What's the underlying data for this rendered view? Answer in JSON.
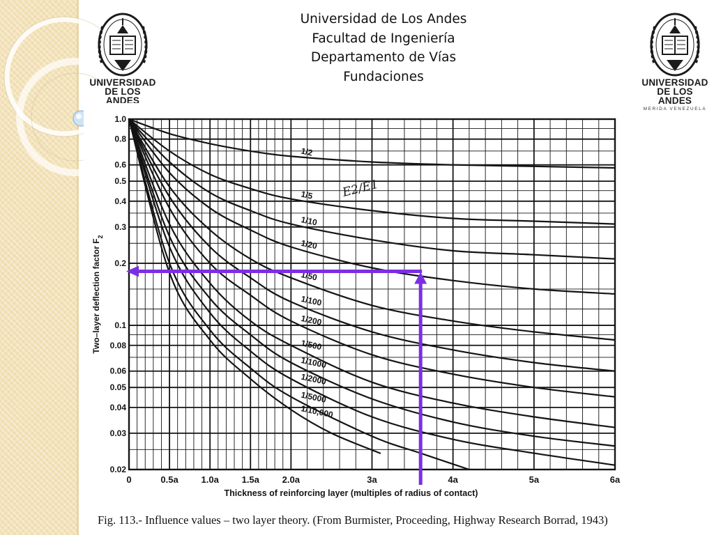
{
  "header": {
    "lines": [
      "Universidad de Los Andes",
      "Facultad de Ingeniería",
      "Departamento de Vías",
      "Fundaciones"
    ]
  },
  "logos": {
    "name_line1": "UNIVERSIDAD",
    "name_line2": "DE LOS ANDES",
    "subtitle": "MERIDA VENEZUELA"
  },
  "caption": "Fig.  113.-   Influence values – two layer theory. (From Burmister, Proceeding, Highway Research Borrad, 1943)",
  "colors": {
    "arrow": "#7b2fe3",
    "ink": "#141414",
    "strip": "#f3e2b8"
  },
  "chart_data": {
    "type": "line",
    "ylabel": "Two–layer deflection factor F",
    "ylabel_subscript": "2",
    "xlabel": "Thickness of reinforcing layer (multiples of radius of contact)",
    "y_scale": "log",
    "xlim": [
      0,
      6
    ],
    "ylim": [
      0.02,
      1.0
    ],
    "grid": true,
    "x_ticks": [
      {
        "value": 0,
        "label": "0"
      },
      {
        "value": 0.5,
        "label": "0.5a"
      },
      {
        "value": 1.0,
        "label": "1.0a"
      },
      {
        "value": 1.5,
        "label": "1.5a"
      },
      {
        "value": 2.0,
        "label": "2.0a"
      },
      {
        "value": 3,
        "label": "3a"
      },
      {
        "value": 4,
        "label": "4a"
      },
      {
        "value": 5,
        "label": "5a"
      },
      {
        "value": 6,
        "label": "6a"
      }
    ],
    "y_ticks": [
      {
        "value": 1.0,
        "label": "1.0"
      },
      {
        "value": 0.8,
        "label": "0.8"
      },
      {
        "value": 0.6,
        "label": "0.6"
      },
      {
        "value": 0.5,
        "label": "0.5"
      },
      {
        "value": 0.4,
        "label": "0.4"
      },
      {
        "value": 0.3,
        "label": "0.3"
      },
      {
        "value": 0.2,
        "label": "0.2"
      },
      {
        "value": 0.1,
        "label": "0.1"
      },
      {
        "value": 0.08,
        "label": "0.08"
      },
      {
        "value": 0.06,
        "label": "0.06"
      },
      {
        "value": 0.05,
        "label": "0.05"
      },
      {
        "value": 0.04,
        "label": "0.04"
      },
      {
        "value": 0.03,
        "label": "0.03"
      },
      {
        "value": 0.02,
        "label": "0.02"
      }
    ],
    "series": [
      {
        "name": "1/2",
        "x": [
          0,
          0.5,
          1,
          1.5,
          2,
          3,
          4,
          5,
          6
        ],
        "y": [
          1.0,
          0.85,
          0.76,
          0.7,
          0.66,
          0.62,
          0.6,
          0.59,
          0.58
        ]
      },
      {
        "name": "1/5",
        "x": [
          0,
          0.5,
          1,
          1.5,
          2,
          3,
          4,
          5,
          6
        ],
        "y": [
          1.0,
          0.7,
          0.54,
          0.46,
          0.41,
          0.36,
          0.33,
          0.32,
          0.31
        ]
      },
      {
        "name": "1/10",
        "x": [
          0,
          0.5,
          1,
          1.5,
          2,
          3,
          4,
          5,
          6
        ],
        "y": [
          1.0,
          0.62,
          0.44,
          0.36,
          0.31,
          0.26,
          0.23,
          0.22,
          0.21
        ]
      },
      {
        "name": "1/20",
        "x": [
          0,
          0.5,
          1,
          1.5,
          2,
          3,
          4,
          5,
          6
        ],
        "y": [
          1.0,
          0.55,
          0.37,
          0.29,
          0.24,
          0.19,
          0.165,
          0.15,
          0.142
        ]
      },
      {
        "name": "1/50",
        "x": [
          0,
          0.5,
          1,
          1.5,
          2,
          3,
          4,
          5,
          6
        ],
        "y": [
          1.0,
          0.47,
          0.29,
          0.21,
          0.17,
          0.125,
          0.105,
          0.093,
          0.085
        ]
      },
      {
        "name": "1/100",
        "x": [
          0,
          0.5,
          1,
          1.5,
          2,
          3,
          4,
          5,
          6
        ],
        "y": [
          1.0,
          0.42,
          0.24,
          0.17,
          0.13,
          0.093,
          0.076,
          0.066,
          0.06
        ]
      },
      {
        "name": "1/200",
        "x": [
          0,
          0.5,
          1,
          1.5,
          2,
          3,
          4,
          5,
          6
        ],
        "y": [
          1.0,
          0.37,
          0.2,
          0.14,
          0.105,
          0.072,
          0.058,
          0.05,
          0.045
        ]
      },
      {
        "name": "1/500",
        "x": [
          0,
          0.5,
          1,
          1.5,
          2,
          3,
          4,
          5,
          6
        ],
        "y": [
          1.0,
          0.31,
          0.16,
          0.105,
          0.08,
          0.053,
          0.042,
          0.036,
          0.032
        ]
      },
      {
        "name": "1/1000",
        "x": [
          0,
          0.5,
          1,
          1.5,
          2,
          3,
          4,
          5,
          6
        ],
        "y": [
          1.0,
          0.27,
          0.135,
          0.09,
          0.066,
          0.044,
          0.034,
          0.029,
          0.026
        ]
      },
      {
        "name": "1/2000",
        "x": [
          0,
          0.5,
          1,
          1.5,
          2,
          3,
          4,
          5,
          6
        ],
        "y": [
          1.0,
          0.24,
          0.115,
          0.075,
          0.055,
          0.036,
          0.028,
          0.024,
          0.021
        ]
      },
      {
        "name": "1/5000",
        "x": [
          0,
          0.5,
          1,
          1.5,
          2,
          3,
          3.6,
          4.2
        ],
        "y": [
          1.0,
          0.2,
          0.095,
          0.062,
          0.045,
          0.029,
          0.024,
          0.02
        ]
      },
      {
        "name": "1/10,000",
        "x": [
          0,
          0.5,
          1,
          1.5,
          2,
          2.5,
          3.1
        ],
        "y": [
          1.0,
          0.18,
          0.085,
          0.055,
          0.039,
          0.03,
          0.024
        ]
      }
    ],
    "annotations": [
      {
        "text": "E2/E1",
        "near_series": "1/5",
        "style": "handwritten"
      }
    ],
    "reading_example": {
      "x": 3.6,
      "y": 0.18,
      "color": "#7b2fe3"
    }
  }
}
